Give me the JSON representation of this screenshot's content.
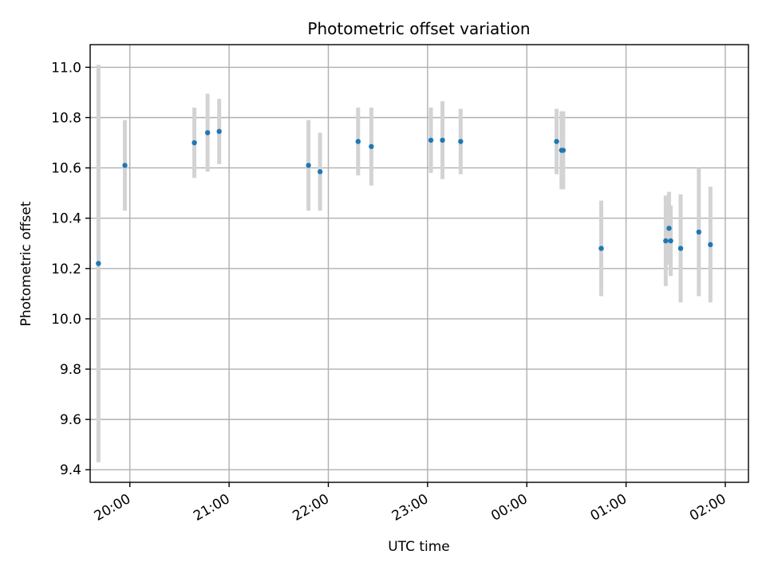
{
  "chart_data": {
    "type": "scatter",
    "title": "Photometric offset variation",
    "xlabel": "UTC time",
    "ylabel": "Photometric offset",
    "x_axis_kind": "time (HH:MM, UTC, 2021-09-16 19:36 to 2021-09-17 02:14)",
    "xlim": [
      "19:36",
      "02:14"
    ],
    "ylim": [
      9.35,
      11.09
    ],
    "x_ticks": [
      "20:00",
      "21:00",
      "22:00",
      "23:00",
      "00:00",
      "01:00",
      "02:00"
    ],
    "y_ticks": [
      "9.4",
      "9.6",
      "9.8",
      "10.0",
      "10.2",
      "10.4",
      "10.6",
      "10.8",
      "11.0"
    ],
    "grid": true,
    "marker_color": "#1f77b4",
    "errorbar_color": "#d3d3d3",
    "points": [
      {
        "time": "19:41",
        "y": 10.22,
        "err": 0.79
      },
      {
        "time": "19:57",
        "y": 10.61,
        "err": 0.18
      },
      {
        "time": "20:39",
        "y": 10.7,
        "err": 0.14
      },
      {
        "time": "20:47",
        "y": 10.74,
        "err": 0.155
      },
      {
        "time": "20:54",
        "y": 10.745,
        "err": 0.13
      },
      {
        "time": "21:48",
        "y": 10.61,
        "err": 0.18
      },
      {
        "time": "21:55",
        "y": 10.585,
        "err": 0.155
      },
      {
        "time": "22:18",
        "y": 10.705,
        "err": 0.135
      },
      {
        "time": "22:26",
        "y": 10.685,
        "err": 0.155
      },
      {
        "time": "23:02",
        "y": 10.71,
        "err": 0.13
      },
      {
        "time": "23:09",
        "y": 10.71,
        "err": 0.155
      },
      {
        "time": "23:20",
        "y": 10.705,
        "err": 0.13
      },
      {
        "time": "00:18",
        "y": 10.705,
        "err": 0.13
      },
      {
        "time": "00:21",
        "y": 10.67,
        "err": 0.155
      },
      {
        "time": "00:22",
        "y": 10.67,
        "err": 0.155
      },
      {
        "time": "00:45",
        "y": 10.28,
        "err": 0.19
      },
      {
        "time": "01:24",
        "y": 10.31,
        "err": 0.18
      },
      {
        "time": "01:26",
        "y": 10.36,
        "err": 0.145
      },
      {
        "time": "01:27",
        "y": 10.31,
        "err": 0.14
      },
      {
        "time": "01:33",
        "y": 10.28,
        "err": 0.215
      },
      {
        "time": "01:44",
        "y": 10.345,
        "err": 0.255
      },
      {
        "time": "01:51",
        "y": 10.295,
        "err": 0.23
      }
    ]
  }
}
